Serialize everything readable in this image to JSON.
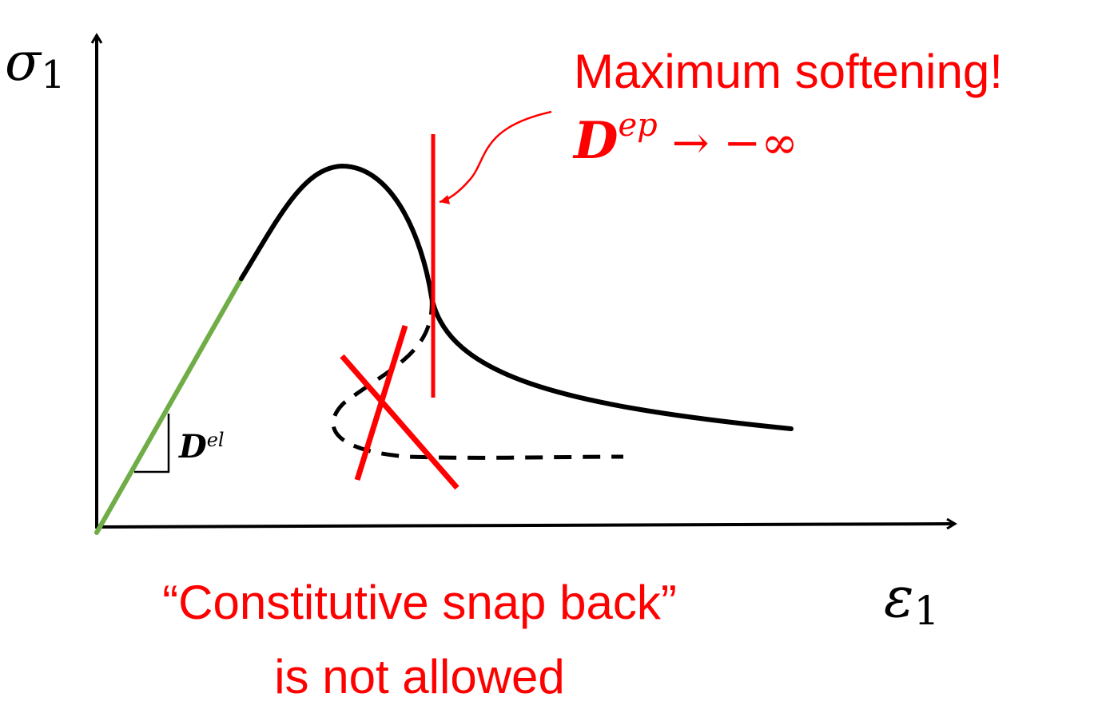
{
  "axes": {
    "y_label": {
      "symbol": "σ",
      "subscript": "1"
    },
    "x_label": {
      "symbol": "ε",
      "subscript": "1"
    }
  },
  "slope_label": {
    "base": "D",
    "superscript": "el"
  },
  "annotation": {
    "line1": "Maximum softening!",
    "tangent": {
      "base": "D",
      "superscript": "ep",
      "rest": " → −∞"
    }
  },
  "caption": {
    "line1": "“Constitutive snap back”",
    "line2": "is not allowed"
  },
  "colors": {
    "curve": "#000000",
    "elastic_branch": "#70ad47",
    "highlight": "#ff0000"
  }
}
